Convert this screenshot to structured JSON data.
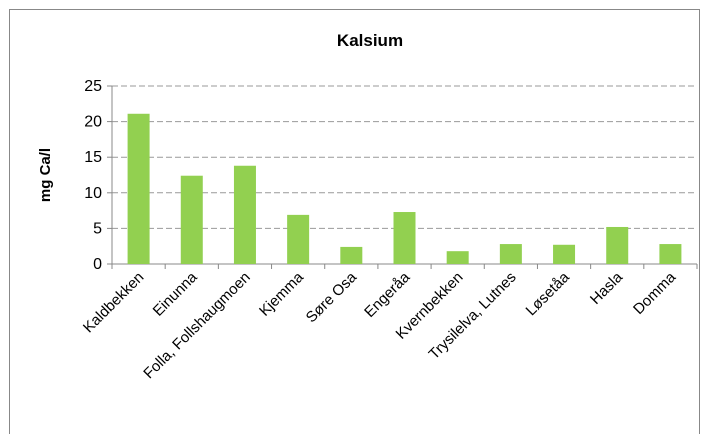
{
  "chart_data": {
    "type": "bar",
    "title": "Kalsium",
    "y_label": "mg Ca/l",
    "categories": [
      "Kaldbekken",
      "Einunna",
      "Folla, Follshaugmoen",
      "Kjemma",
      "Søre Osa",
      "Engeråa",
      "Kvernbekken",
      "Trysilelva, Lutnes",
      "Løsetåa",
      "Hasla",
      "Domma"
    ],
    "values": [
      21.1,
      12.4,
      13.8,
      6.9,
      2.4,
      7.3,
      1.8,
      2.8,
      2.7,
      5.2,
      2.8
    ],
    "color": "#92d050",
    "ylim": [
      0,
      25
    ],
    "yticks": [
      0,
      5,
      10,
      15,
      20,
      25
    ],
    "grid": true
  }
}
